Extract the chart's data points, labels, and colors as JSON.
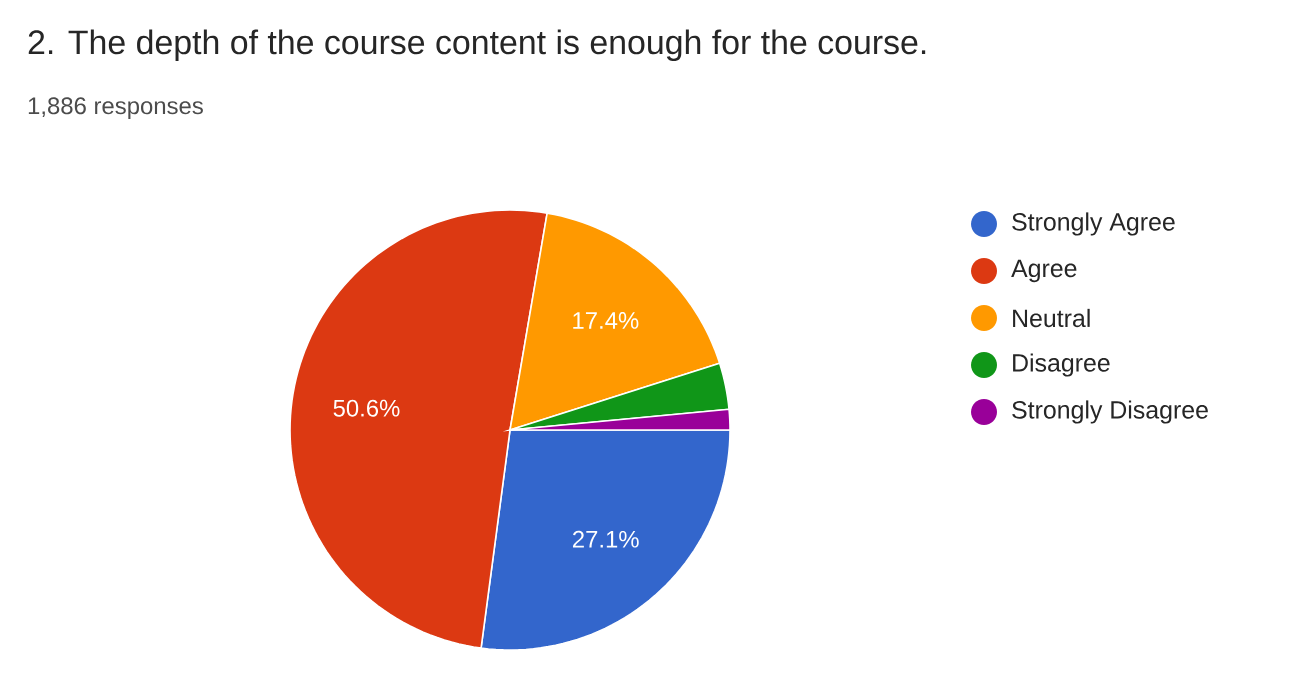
{
  "chart_data": {
    "type": "pie",
    "title": "2. The depth of the course content is enough for the course.",
    "subtitle": "1,886 responses",
    "categories": [
      "Strongly Agree",
      "Agree",
      "Neutral",
      "Disagree",
      "Strongly Disagree"
    ],
    "values": [
      27.1,
      50.6,
      17.4,
      3.4,
      1.5
    ],
    "colors": [
      "#3366cc",
      "#dc3912",
      "#ff9900",
      "#109618",
      "#990099"
    ],
    "value_labels": [
      "27.1%",
      "50.6%",
      "17.4%",
      null,
      null
    ],
    "legend": "right"
  }
}
